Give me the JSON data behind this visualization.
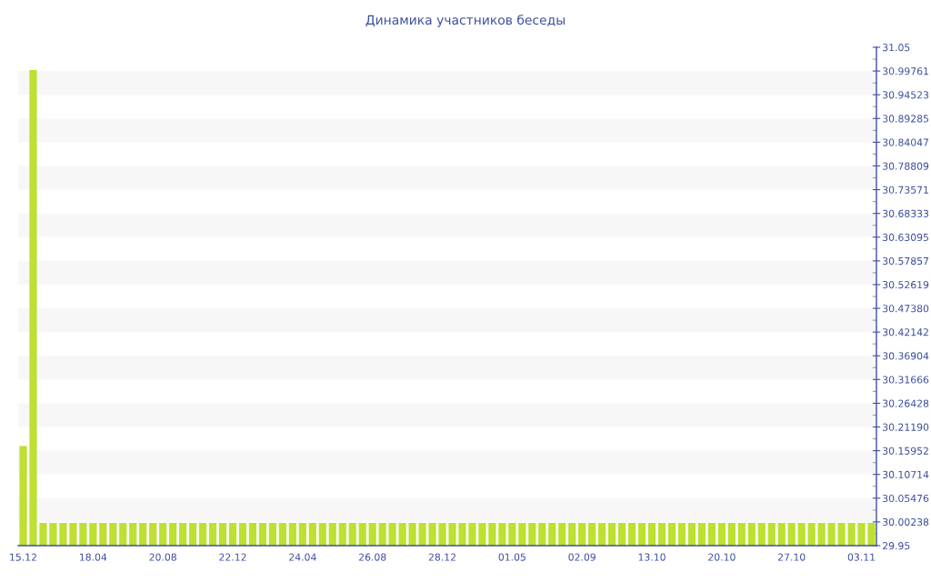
{
  "chart_data": {
    "type": "bar",
    "title": "Динамика участников беседы",
    "categories": [
      "15.12",
      null,
      null,
      null,
      null,
      null,
      null,
      "18.04",
      null,
      null,
      null,
      null,
      null,
      null,
      "20.08",
      null,
      null,
      null,
      null,
      null,
      null,
      "22.12",
      null,
      null,
      null,
      null,
      null,
      null,
      "24.04",
      null,
      null,
      null,
      null,
      null,
      null,
      "26.08",
      null,
      null,
      null,
      null,
      null,
      null,
      "28.12",
      null,
      null,
      null,
      null,
      null,
      null,
      "01.05",
      null,
      null,
      null,
      null,
      null,
      null,
      "02.09",
      null,
      null,
      null,
      null,
      null,
      null,
      "13.10",
      null,
      null,
      null,
      null,
      null,
      null,
      "20.10",
      null,
      null,
      null,
      null,
      null,
      null,
      "27.10",
      null,
      null,
      null,
      null,
      null,
      null,
      "03.11",
      null
    ],
    "values": [
      30.17,
      31,
      30,
      30,
      30,
      30,
      30,
      30,
      30,
      30,
      30,
      30,
      30,
      30,
      30,
      30,
      30,
      30,
      30,
      30,
      30,
      30,
      30,
      30,
      30,
      30,
      30,
      30,
      30,
      30,
      30,
      30,
      30,
      30,
      30,
      30,
      30,
      30,
      30,
      30,
      30,
      30,
      30,
      30,
      30,
      30,
      30,
      30,
      30,
      30,
      30,
      30,
      30,
      30,
      30,
      30,
      30,
      30,
      30,
      30,
      30,
      30,
      30,
      30,
      30,
      30,
      30,
      30,
      30,
      30,
      30,
      30,
      30,
      30,
      30,
      30,
      30,
      30,
      30,
      30,
      30,
      30,
      30,
      30,
      30,
      30
    ],
    "color": "#bde031",
    "ylim": [
      29.95,
      31.05
    ],
    "yticks": [
      29.95,
      30.00238,
      30.05476,
      30.10714,
      30.15952,
      {
        "value": 30.2119,
        "label": "30.21190"
      },
      30.26428,
      30.31666,
      30.36904,
      30.42142,
      {
        "value": 30.4738,
        "label": "30.47380"
      },
      30.52619,
      30.57857,
      30.63095,
      30.68333,
      30.73571,
      30.78809,
      30.84047,
      30.89285,
      30.94523,
      30.99761,
      31.05
    ],
    "bands": [
      {
        "axis": "y",
        "from": 30.00238,
        "to": 30.05476,
        "color": "#f7f7f7"
      },
      {
        "axis": "y",
        "from": 30.10714,
        "to": 30.15952,
        "color": "#f7f7f7"
      },
      {
        "axis": "y",
        "from": 30.2119,
        "to": 30.26428,
        "color": "#f7f7f7"
      },
      {
        "axis": "y",
        "from": 30.31666,
        "to": 30.36904,
        "color": "#f7f7f7"
      },
      {
        "axis": "y",
        "from": 30.42142,
        "to": 30.4738,
        "color": "#f7f7f7"
      },
      {
        "axis": "y",
        "from": 30.52619,
        "to": 30.57857,
        "color": "#f7f7f7"
      },
      {
        "axis": "y",
        "from": 30.63095,
        "to": 30.68333,
        "color": "#f7f7f7"
      },
      {
        "axis": "y",
        "from": 30.73571,
        "to": 30.78809,
        "color": "#f7f7f7"
      },
      {
        "axis": "y",
        "from": 30.84047,
        "to": 30.89285,
        "color": "#f7f7f7"
      },
      {
        "axis": "y",
        "from": 30.94523,
        "to": 30.99761,
        "color": "#f7f7f7"
      }
    ]
  }
}
